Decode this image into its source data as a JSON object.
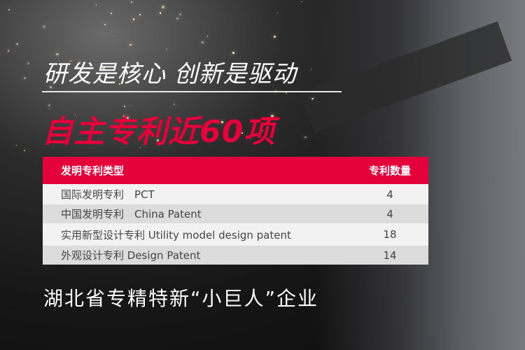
{
  "headline": "研发是核心 创新是驱动",
  "subheadline": "自主专利近60项",
  "table": {
    "headers": [
      "发明专利类型",
      "专利数量"
    ],
    "rows": [
      {
        "type": "国际发明专利　PCT",
        "count": "4"
      },
      {
        "type": "中国发明专利　China Patent",
        "count": "4"
      },
      {
        "type": "实用新型设计专利  Utility model design patent",
        "count": "18"
      },
      {
        "type": "外观设计专利  Design Patent",
        "count": "14"
      }
    ]
  },
  "footer": "湖北省专精特新“小巨人”企业",
  "colors": {
    "accent": "#e4003a",
    "row_light": "#f2f2f2",
    "row_dark": "#dcdcdc"
  }
}
